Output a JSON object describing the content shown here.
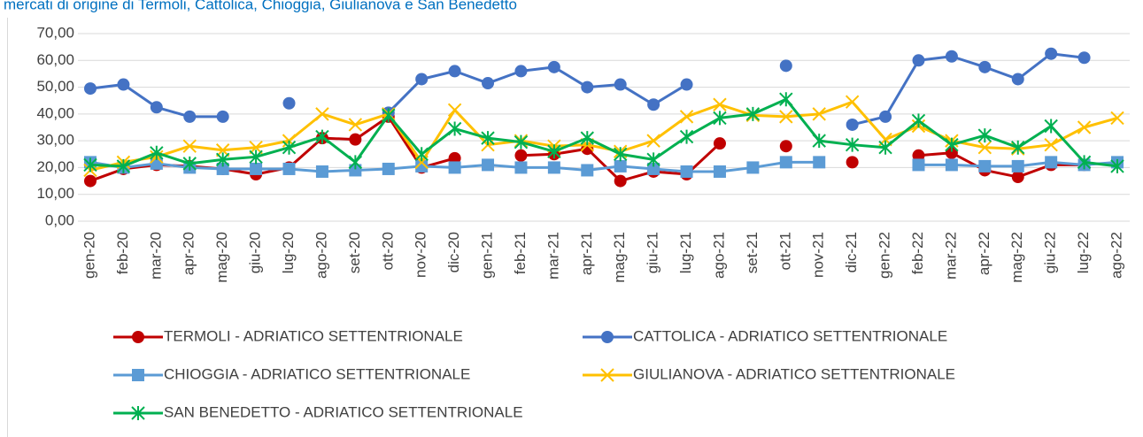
{
  "chart_data": {
    "type": "line",
    "title": "mercati di origine di Termoli, Cattolica, Chioggia, Giulianova e San Benedetto",
    "categories": [
      "gen-20",
      "feb-20",
      "mar-20",
      "apr-20",
      "mag-20",
      "giu-20",
      "lug-20",
      "ago-20",
      "set-20",
      "ott-20",
      "nov-20",
      "dic-20",
      "gen-21",
      "feb-21",
      "mar-21",
      "apr-21",
      "mag-21",
      "giu-21",
      "lug-21",
      "ago-21",
      "set-21",
      "ott-21",
      "nov-21",
      "dic-21",
      "gen-22",
      "feb-22",
      "mar-22",
      "apr-22",
      "mag-22",
      "giu-22",
      "lug-22",
      "ago-22"
    ],
    "series": [
      {
        "name": "TERMOLI - ADRIATICO SETTENTRIONALE",
        "color": "#c00000",
        "marker": "circle",
        "values": [
          15,
          19.5,
          21,
          20.5,
          19.5,
          17.5,
          20,
          31,
          30.5,
          39,
          20,
          23.5,
          null,
          24.5,
          25,
          27,
          15,
          18.5,
          17.5,
          29,
          null,
          28,
          null,
          22,
          null,
          24.5,
          25.5,
          19,
          16.5,
          21,
          21,
          null
        ]
      },
      {
        "name": "CATTOLICA - ADRIATICO SETTENTRIONALE",
        "color": "#4472c4",
        "marker": "circle",
        "values": [
          49.5,
          51,
          42.5,
          39,
          39,
          null,
          44,
          null,
          null,
          40.5,
          53,
          56,
          51.5,
          56,
          57.5,
          50,
          51,
          43.5,
          51,
          null,
          null,
          58,
          null,
          36,
          39,
          60,
          61.5,
          57.5,
          53,
          62.5,
          61,
          null
        ]
      },
      {
        "name": "CHIOGGIA - ADRIATICO SETTENTRIONALE",
        "color": "#5b9bd5",
        "marker": "square",
        "values": [
          22,
          20,
          21.5,
          20,
          19.5,
          19.5,
          19.5,
          18.5,
          19,
          19.5,
          20.5,
          20,
          21,
          20,
          20,
          19,
          20.5,
          19.5,
          18.5,
          18.5,
          20,
          22,
          22,
          null,
          null,
          21,
          21,
          20.5,
          20.5,
          22,
          21,
          22
        ]
      },
      {
        "name": "GIULIANOVA - ADRIATICO SETTENTRIONALE",
        "color": "#ffc000",
        "marker": "x",
        "values": [
          19,
          22,
          24,
          28,
          26.5,
          27.5,
          30,
          40,
          36,
          40,
          22,
          41.5,
          28.5,
          30,
          28,
          28.5,
          26,
          30,
          39,
          43.5,
          39.5,
          39,
          40,
          44.5,
          30.5,
          35.5,
          30,
          27.5,
          27,
          28.5,
          35,
          38.5
        ]
      },
      {
        "name": "SAN BENEDETTO - ADRIATICO SETTENTRIONALE",
        "color": "#00b050",
        "marker": "star",
        "values": [
          21,
          20.5,
          25.5,
          21.5,
          23,
          24,
          27.5,
          31.5,
          22,
          39.5,
          25,
          34.5,
          31,
          29.5,
          26,
          31,
          25,
          23,
          31.5,
          38.5,
          40,
          45.5,
          30,
          28.5,
          27.5,
          37.5,
          28.5,
          32,
          27.5,
          35.5,
          22,
          20.5
        ]
      }
    ],
    "ylim": [
      0,
      70
    ],
    "yticks": [
      {
        "value": 0,
        "label": "0,00"
      },
      {
        "value": 10,
        "label": "10,00"
      },
      {
        "value": 20,
        "label": "20,00"
      },
      {
        "value": 30,
        "label": "30,00"
      },
      {
        "value": 40,
        "label": "40,00"
      },
      {
        "value": 50,
        "label": "50,00"
      },
      {
        "value": 60,
        "label": "60,00"
      },
      {
        "value": 70,
        "label": "70,00"
      }
    ],
    "grid": true,
    "legend": "bottom"
  }
}
